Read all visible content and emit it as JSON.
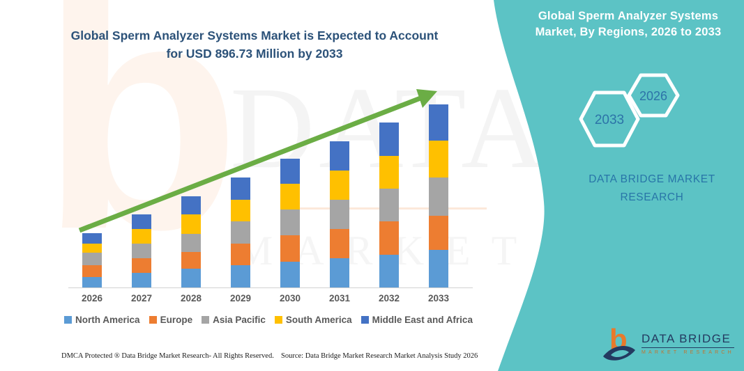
{
  "left_header": {
    "title_line1": "Global Sperm Analyzer Systems Market is Expected to Account",
    "title_line2": "for USD 896.73 Million by 2033"
  },
  "right_panel": {
    "title_line1": "Global Sperm Analyzer Systems",
    "title_line2": "Market, By Regions, 2026 to 2033",
    "hexagon_back": "2033",
    "hexagon_front": "2026",
    "brand_line1": "DATA BRIDGE MARKET",
    "brand_line2": "RESEARCH",
    "background_color": "#5CC3C5",
    "accent_text_color": "#2875A8"
  },
  "chart_data": {
    "type": "bar",
    "stacked": true,
    "title": "Global Sperm Analyzer Systems Market is Expected to Account for USD 896.73 Million by 2033",
    "unit": "USD Million",
    "categories": [
      "2026",
      "2027",
      "2028",
      "2029",
      "2030",
      "2031",
      "2032",
      "2033"
    ],
    "series": [
      {
        "name": "North America",
        "color": "#5B9BD5",
        "values": [
          51,
          71,
          92,
          108,
          126,
          143,
          162,
          184
        ]
      },
      {
        "name": "Europe",
        "color": "#ED7D31",
        "values": [
          57,
          72,
          82,
          107,
          130,
          144,
          161,
          167
        ]
      },
      {
        "name": "Asia Pacific",
        "color": "#A5A5A5",
        "values": [
          62,
          72,
          89,
          108,
          126,
          143,
          162,
          187
        ]
      },
      {
        "name": "South America",
        "color": "#FFC000",
        "values": [
          45,
          71,
          95,
          108,
          126,
          143,
          161,
          181
        ]
      },
      {
        "name": "Middle East and Africa",
        "color": "#4472C4",
        "values": [
          51,
          72,
          89,
          108,
          123,
          143,
          162,
          177.73
        ]
      }
    ],
    "estimated_totals": [
      266,
      358,
      447,
      539,
      631,
      716,
      808,
      896.73
    ],
    "final_year_total": 896.73,
    "y_axis_visible": false,
    "grid": false,
    "legend_position": "bottom",
    "trend_arrow": true,
    "trend_arrow_color": "#6BAD45"
  },
  "footer": {
    "dmca": "DMCA Protected ® Data Bridge Market Research-  All Rights Reserved.",
    "source": "Source: Data Bridge Market Research  Market Analysis Study 2026"
  },
  "logo": {
    "name": "DATA BRIDGE",
    "subtitle": "MARKET RESEARCH"
  },
  "watermark": {
    "line1": "DATA BRIDGE",
    "line2": "MARKET RESEARCH",
    "logo_letter": "b"
  }
}
